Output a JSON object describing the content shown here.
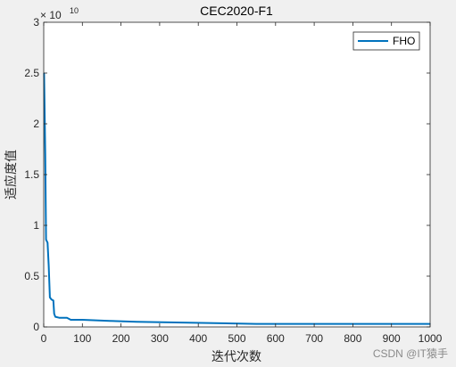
{
  "chart_data": {
    "type": "line",
    "title": "CEC2020-F1",
    "xlabel": "迭代次数",
    "ylabel": "适应度值",
    "xlim": [
      0,
      1000
    ],
    "ylim": [
      0,
      3
    ],
    "x_ticks": [
      "0",
      "100",
      "200",
      "300",
      "400",
      "500",
      "600",
      "700",
      "800",
      "900",
      "1000"
    ],
    "y_ticks": [
      "0",
      "0.5",
      "1",
      "1.5",
      "2",
      "2.5",
      "3"
    ],
    "y_exponent_label": "× 10",
    "y_exponent": "10",
    "legend_position": "top-right",
    "grid": false,
    "series": [
      {
        "name": "FHO",
        "color": "#0072bd",
        "x": [
          1,
          4,
          6,
          10,
          13,
          16,
          20,
          25,
          27,
          30,
          40,
          60,
          70,
          100,
          170,
          240,
          550,
          1000
        ],
        "y": [
          2.5,
          1.7,
          0.86,
          0.83,
          0.6,
          0.29,
          0.27,
          0.26,
          0.13,
          0.1,
          0.09,
          0.09,
          0.07,
          0.07,
          0.06,
          0.05,
          0.03,
          0.03
        ]
      }
    ]
  },
  "watermark": "CSDN @IT猿手"
}
